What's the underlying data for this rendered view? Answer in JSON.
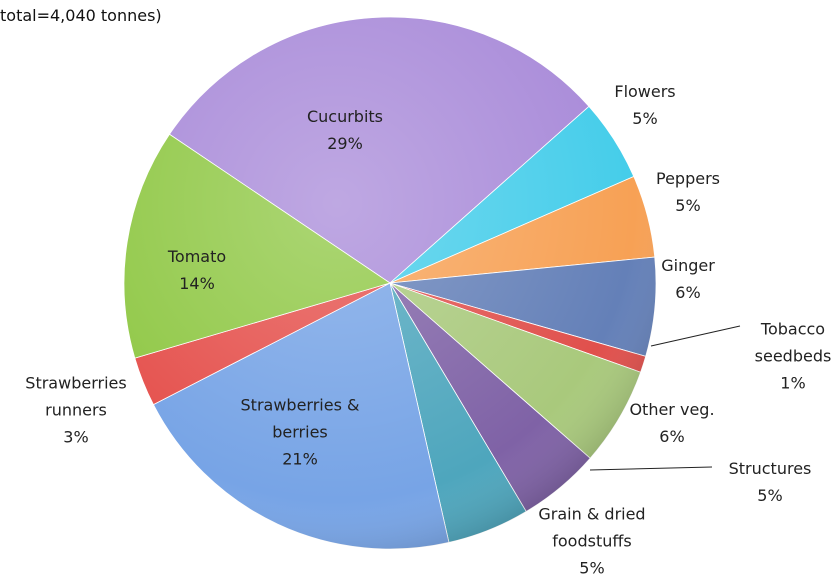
{
  "chart_data": {
    "type": "pie",
    "title": "total=4,040 tonnes)",
    "categories": [
      "Cucurbits",
      "Flowers",
      "Peppers",
      "Ginger",
      "Tobacco seedbeds",
      "Other veg.",
      "Structures",
      "Grain & dried foodstuffs",
      "Strawberries & berries",
      "Strawberries runners",
      "Tomato"
    ],
    "values": [
      29,
      5,
      5,
      6,
      1,
      6,
      5,
      5,
      21,
      3,
      14
    ],
    "value_labels": [
      "29%",
      "5%",
      "5%",
      "6%",
      "1%",
      "6%",
      "5%",
      "5%",
      "21%",
      "3%",
      "14%"
    ],
    "colors": [
      "#a98bd9",
      "#45cdea",
      "#f7a155",
      "#6480b8",
      "#e0504c",
      "#a9c97c",
      "#7f62a6",
      "#4ea6bd",
      "#77a4e6",
      "#e5514d",
      "#90c846"
    ]
  }
}
